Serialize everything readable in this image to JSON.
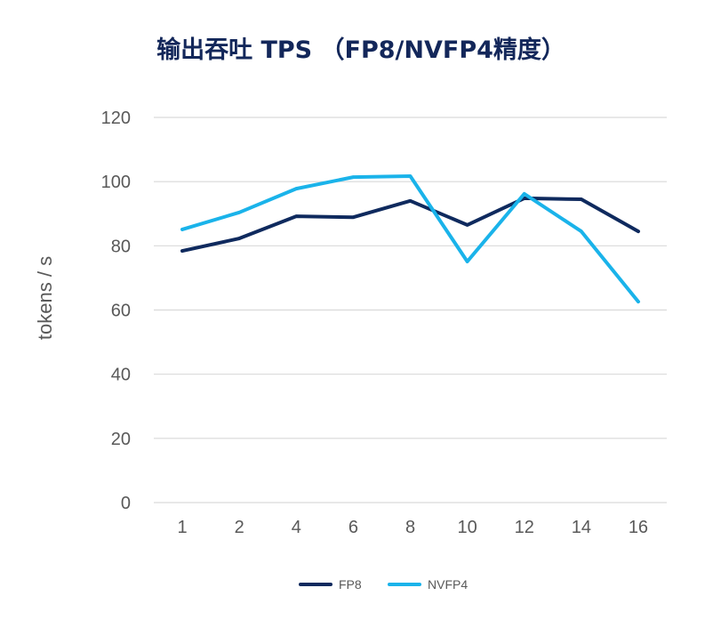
{
  "chart_data": {
    "type": "line",
    "title": "输出吞吐 TPS （FP8/NVFP4精度）",
    "ylabel": "tokens / s",
    "categories": [
      "1",
      "2",
      "4",
      "6",
      "8",
      "10",
      "12",
      "14",
      "16"
    ],
    "ylim": [
      0,
      120
    ],
    "yticks": [
      0,
      20,
      40,
      60,
      80,
      100,
      120
    ],
    "grid": true,
    "legend_position": "bottom",
    "series": [
      {
        "name": "FP8",
        "color": "#0f2a5e",
        "values": [
          78.4,
          82.3,
          89.2,
          88.9,
          94.0,
          86.5,
          94.8,
          94.5,
          84.5
        ]
      },
      {
        "name": "NVFP4",
        "color": "#1ab3ea",
        "values": [
          85.1,
          90.4,
          97.8,
          101.4,
          101.7,
          75.1,
          96.2,
          84.5,
          62.6
        ]
      }
    ]
  },
  "colors": {
    "title": "#13275a",
    "axis_text": "#595959",
    "grid": "#d9d9d9",
    "background": "#ffffff"
  }
}
